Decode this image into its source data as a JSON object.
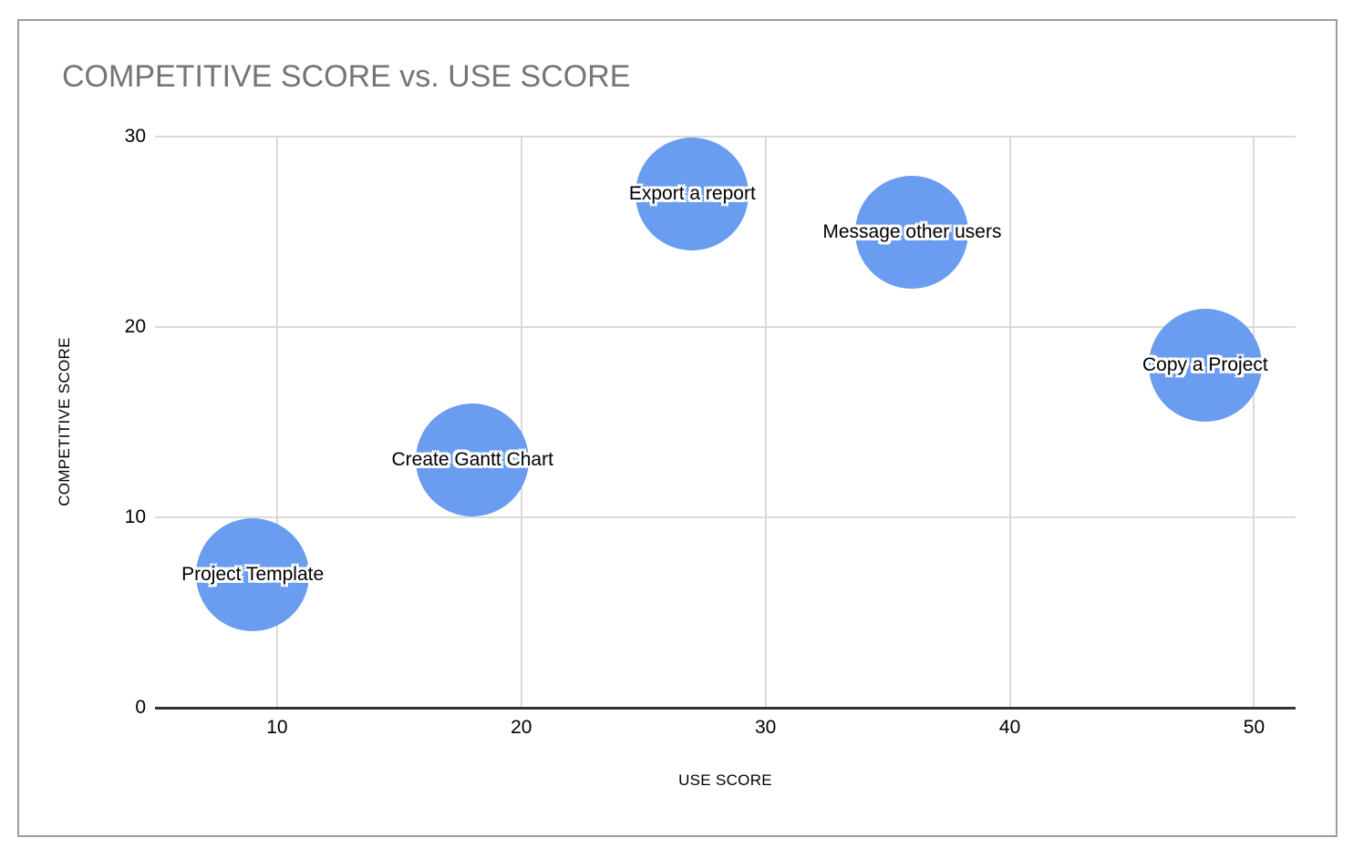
{
  "page": {
    "background_color": "#ffffff",
    "card_border_color": "#9c9c9c"
  },
  "chart_data": {
    "type": "scatter",
    "subtype": "bubble",
    "title": "COMPETITIVE SCORE vs. USE SCORE",
    "title_color": "#757575",
    "xlabel": "USE SCORE",
    "ylabel": "COMPETITIVE SCORE",
    "xlim": [
      5,
      51.7
    ],
    "ylim": [
      0,
      30
    ],
    "x_ticks": [
      10,
      20,
      30,
      40,
      50
    ],
    "y_ticks": [
      0,
      10,
      20,
      30
    ],
    "grid": true,
    "legend_position": "none",
    "bubble_color": "#6A9CF0",
    "gridline_color": "#dadada",
    "axis_line_color": "#333333",
    "points": [
      {
        "label": "Project Template",
        "x": 9,
        "y": 7
      },
      {
        "label": "Create Gantt Chart",
        "x": 18,
        "y": 13
      },
      {
        "label": "Export a report",
        "x": 27,
        "y": 27
      },
      {
        "label": "Message other users",
        "x": 36,
        "y": 25
      },
      {
        "label": "Copy a Project",
        "x": 48,
        "y": 18
      }
    ]
  }
}
